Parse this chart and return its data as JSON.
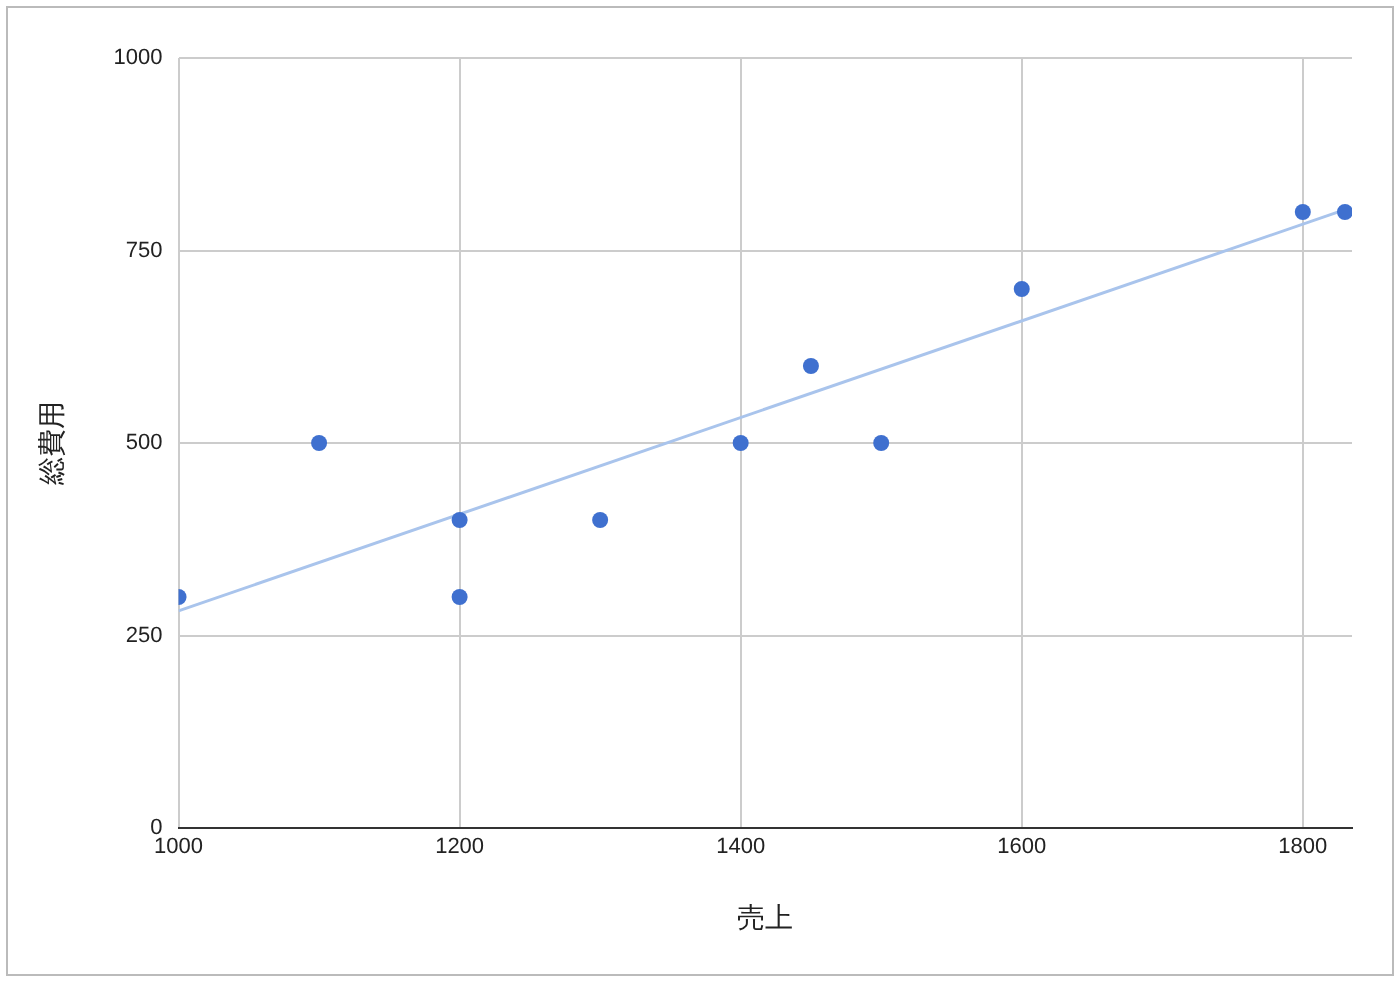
{
  "chart_data": {
    "type": "scatter",
    "xlabel": "売上",
    "ylabel": "総費用",
    "xlim": [
      1000,
      1835
    ],
    "xticks": [
      1000,
      1200,
      1400,
      1600,
      1800
    ],
    "ylim": [
      0,
      1000
    ],
    "yticks": [
      0,
      250,
      500,
      750,
      1000
    ],
    "grid": true,
    "legend": false,
    "marker": "circle",
    "series": [
      {
        "color": "#3f70cf",
        "x": [
          1000,
          1100,
          1200,
          1200,
          1300,
          1400,
          1450,
          1500,
          1600,
          1800,
          1830
        ],
        "values": [
          300,
          500,
          400,
          300,
          400,
          500,
          600,
          500,
          700,
          800,
          800
        ]
      },
      {
        "type": "line",
        "color": "#a9c4ec",
        "x": [
          1000,
          1830
        ],
        "values": [
          282,
          803
        ],
        "line_style": "solid",
        "marker": "none"
      }
    ]
  }
}
